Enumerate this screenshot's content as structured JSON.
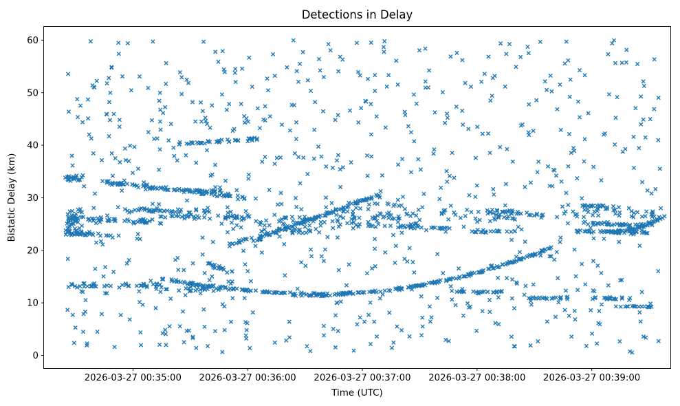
{
  "figure": {
    "background": "#ffffff"
  },
  "chart_data": {
    "type": "scatter",
    "title": "Detections in Delay",
    "xlabel": "Time (UTC)",
    "ylabel": "Bistatic Delay (km)",
    "marker": "x",
    "marker_color": "#1f77b4",
    "grid": false,
    "legend": null,
    "x_axis": {
      "domain_seconds": [
        0,
        328
      ],
      "tick_seconds": [
        46.7,
        106.7,
        166.7,
        226.7,
        286.7
      ],
      "tick_labels": [
        "2026-03-27 00:35:00",
        "2026-03-27 00:36:00",
        "2026-03-27 00:37:00",
        "2026-03-27 00:38:00",
        "2026-03-27 00:39:00"
      ]
    },
    "y_axis": {
      "lim": [
        -2.5,
        62.6
      ],
      "ticks": [
        0,
        10,
        20,
        30,
        40,
        50,
        60
      ]
    },
    "seed": 1337,
    "background_noise": {
      "count": 720,
      "t": [
        12,
        324
      ],
      "d": [
        0.5,
        60
      ]
    },
    "tracks": [
      {
        "shape": "box",
        "n": 25,
        "t": [
          11,
          22
        ],
        "d": [
          33.2,
          34.3
        ],
        "s": 0
      },
      {
        "shape": "box",
        "n": 45,
        "t": [
          11,
          21
        ],
        "d": [
          22.8,
          28.3
        ],
        "s": 0
      },
      {
        "shape": "linear",
        "n": 55,
        "t": [
          12,
          62
        ],
        "d": [
          26.1,
          25.4
        ],
        "s": 0.25
      },
      {
        "shape": "linear",
        "n": 28,
        "t": [
          12,
          42
        ],
        "d": [
          23.3,
          22.8
        ],
        "s": 0.2
      },
      {
        "shape": "linear",
        "n": 85,
        "t": [
          33,
          107
        ],
        "d": [
          33.0,
          29.9
        ],
        "s": 0.18
      },
      {
        "shape": "linear",
        "n": 30,
        "t": [
          55,
          95
        ],
        "d": [
          31.9,
          31.1
        ],
        "s": 0.15
      },
      {
        "shape": "linear",
        "n": 40,
        "t": [
          42,
          88
        ],
        "d": [
          27.7,
          27.3
        ],
        "s": 0.2
      },
      {
        "shape": "linear",
        "n": 40,
        "t": [
          60,
          110
        ],
        "d": [
          26.5,
          26.2
        ],
        "s": 0.2
      },
      {
        "shape": "linear",
        "n": 40,
        "t": [
          70,
          112
        ],
        "d": [
          40.2,
          41.2
        ],
        "s": 0.15
      },
      {
        "shape": "linear",
        "n": 18,
        "t": [
          95,
          113
        ],
        "d": [
          21.4,
          22.0
        ],
        "s": 0.25
      },
      {
        "shape": "linear",
        "n": 110,
        "t": [
          113,
          176
        ],
        "d": [
          22.4,
          30.6
        ],
        "s": 0.15
      },
      {
        "shape": "quadEnd",
        "n": 95,
        "t": [
          62,
          146
        ],
        "d": [
          14.6,
          11.7
        ],
        "s": 0.12
      },
      {
        "shape": "quadStart",
        "n": 170,
        "t": [
          146,
          266
        ],
        "d": [
          11.7,
          20.6
        ],
        "s": 0.12
      },
      {
        "shape": "linear",
        "n": 40,
        "t": [
          12,
          65
        ],
        "d": [
          13.2,
          13.4
        ],
        "s": 0.2
      },
      {
        "shape": "linear",
        "n": 22,
        "t": [
          58,
          96
        ],
        "d": [
          12.5,
          12.6
        ],
        "s": 0.15
      },
      {
        "shape": "box",
        "n": 85,
        "t": [
          150,
          200
        ],
        "d": [
          24.2,
          29.0
        ],
        "s": 0
      },
      {
        "shape": "box",
        "n": 50,
        "t": [
          113,
          146
        ],
        "d": [
          23.2,
          26.4
        ],
        "s": 0
      },
      {
        "shape": "box",
        "n": 35,
        "t": [
          205,
          248
        ],
        "d": [
          25.6,
          27.9
        ],
        "s": 0
      },
      {
        "shape": "linear",
        "n": 22,
        "t": [
          224,
          247
        ],
        "d": [
          23.6,
          23.6
        ],
        "s": 0.12
      },
      {
        "shape": "linear",
        "n": 25,
        "t": [
          230,
          262
        ],
        "d": [
          27.6,
          26.7
        ],
        "s": 0.15
      },
      {
        "shape": "linear",
        "n": 20,
        "t": [
          185,
          215
        ],
        "d": [
          24.4,
          24.2
        ],
        "s": 0.12
      },
      {
        "shape": "linear",
        "n": 45,
        "t": [
          278,
          316
        ],
        "d": [
          23.7,
          23.4
        ],
        "s": 0.18
      },
      {
        "shape": "quadStart",
        "n": 55,
        "t": [
          296,
          325
        ],
        "d": [
          23.5,
          26.5
        ],
        "s": 0.12
      },
      {
        "shape": "linear",
        "n": 38,
        "t": [
          282,
          320
        ],
        "d": [
          25.2,
          24.6
        ],
        "s": 0.15
      },
      {
        "shape": "linear",
        "n": 18,
        "t": [
          281,
          298
        ],
        "d": [
          28.5,
          28.3
        ],
        "s": 0.12
      },
      {
        "shape": "box",
        "n": 40,
        "t": [
          268,
          325
        ],
        "d": [
          26.3,
          28.2
        ],
        "s": 0
      },
      {
        "shape": "linear",
        "n": 25,
        "t": [
          216,
          240
        ],
        "d": [
          12.1,
          12.1
        ],
        "s": 0.12
      },
      {
        "shape": "linear",
        "n": 22,
        "t": [
          252,
          276
        ],
        "d": [
          10.9,
          10.9
        ],
        "s": 0.12
      },
      {
        "shape": "linear",
        "n": 20,
        "t": [
          282,
          308
        ],
        "d": [
          10.8,
          10.8
        ],
        "s": 0.12
      },
      {
        "shape": "linear",
        "n": 16,
        "t": [
          298,
          318
        ],
        "d": [
          9.3,
          9.3
        ],
        "s": 0.1
      },
      {
        "shape": "linear",
        "n": 18,
        "t": [
          86,
          100
        ],
        "d": [
          17.3,
          15.9
        ],
        "s": 0.2
      },
      {
        "shape": "linear",
        "n": 20,
        "t": [
          128,
          150
        ],
        "d": [
          11.4,
          11.4
        ],
        "s": 0.1
      }
    ]
  }
}
